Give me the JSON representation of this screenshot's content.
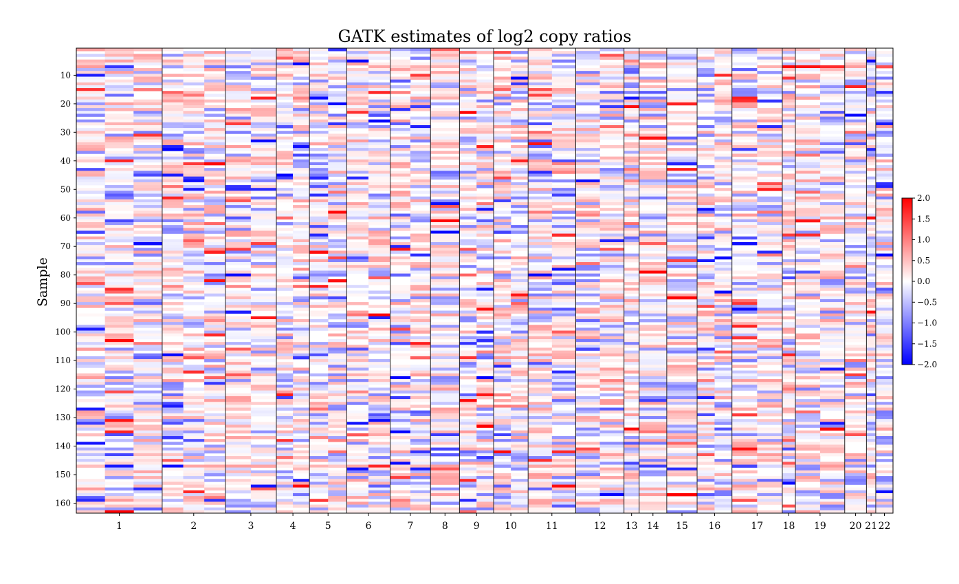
{
  "chart_data": {
    "type": "heatmap",
    "title": "GATK estimates of log2 copy ratios",
    "ylabel": "Sample",
    "xlabel": "",
    "n_samples": 163,
    "y_ticks": [
      10,
      20,
      30,
      40,
      50,
      60,
      70,
      80,
      90,
      100,
      110,
      120,
      130,
      140,
      150,
      160
    ],
    "x_categories": [
      {
        "label": "1",
        "weight": 249
      },
      {
        "label": "2",
        "weight": 183
      },
      {
        "label": "3",
        "weight": 148
      },
      {
        "label": "4",
        "weight": 96
      },
      {
        "label": "5",
        "weight": 108
      },
      {
        "label": "6",
        "weight": 126
      },
      {
        "label": "7",
        "weight": 117
      },
      {
        "label": "8",
        "weight": 84
      },
      {
        "label": "9",
        "weight": 99
      },
      {
        "label": "10",
        "weight": 100
      },
      {
        "label": "11",
        "weight": 138
      },
      {
        "label": "12",
        "weight": 140
      },
      {
        "label": "13",
        "weight": 44
      },
      {
        "label": "14",
        "weight": 80
      },
      {
        "label": "15",
        "weight": 88
      },
      {
        "label": "16",
        "weight": 101
      },
      {
        "label": "17",
        "weight": 146
      },
      {
        "label": "18",
        "weight": 38
      },
      {
        "label": "19",
        "weight": 143
      },
      {
        "label": "20",
        "weight": 63
      },
      {
        "label": "21",
        "weight": 27
      },
      {
        "label": "22",
        "weight": 50
      }
    ],
    "colorbar": {
      "colormap": "bwr",
      "vmin": -2.0,
      "vmax": 2.0,
      "low_color": "#0000ff",
      "mid_color": "#ffffff",
      "high_color": "#ff0000",
      "ticks": [
        "2.0",
        "1.5",
        "1.0",
        "0.5",
        "0.0",
        "−0.5",
        "−1.0",
        "−1.5",
        "−2.0"
      ]
    },
    "grid": false,
    "legend": "colorbar-right"
  }
}
